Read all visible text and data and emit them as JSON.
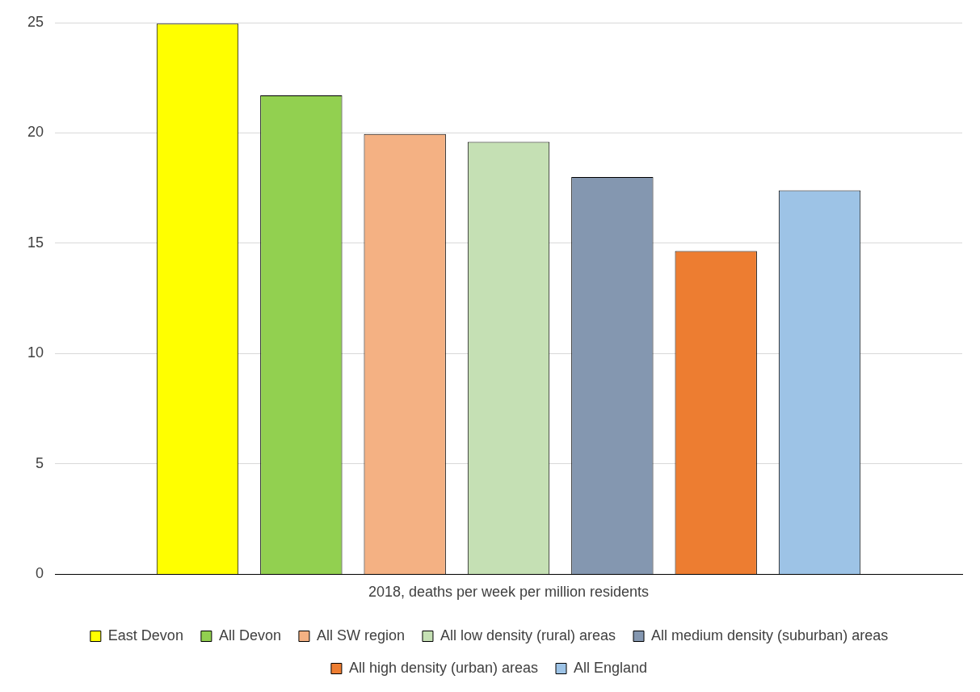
{
  "chart_data": {
    "type": "bar",
    "categories": [
      "2018, deaths per week per million residents"
    ],
    "series": [
      {
        "name": "East Devon",
        "color": "#ffff00",
        "values": [
          24.95
        ]
      },
      {
        "name": "All Devon",
        "color": "#92d050",
        "values": [
          21.7
        ]
      },
      {
        "name": "All SW region",
        "color": "#f4b183",
        "values": [
          19.95
        ]
      },
      {
        "name": "All low density (rural) areas",
        "color": "#c5e0b4",
        "values": [
          19.6
        ]
      },
      {
        "name": "All medium density (suburban) areas",
        "color": "#8497b0",
        "values": [
          18.0
        ]
      },
      {
        "name": "All high density (urban) areas",
        "color": "#ed7d31",
        "values": [
          14.65
        ]
      },
      {
        "name": "All England",
        "color": "#9dc3e6",
        "values": [
          17.4
        ]
      }
    ],
    "ylim": [
      0,
      25
    ],
    "yticks": [
      0,
      5,
      10,
      15,
      20,
      25
    ],
    "grid": "y",
    "legend": "bottom"
  }
}
